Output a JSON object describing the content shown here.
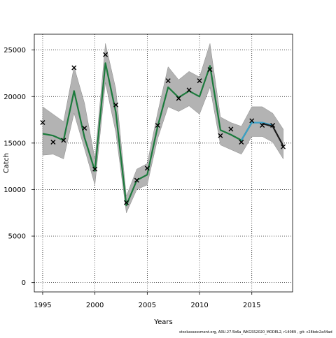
{
  "chart_data": {
    "type": "line",
    "title": "",
    "xlabel": "Years",
    "ylabel": "Catch",
    "xlim": [
      1994.2,
      2018.9
    ],
    "ylim": [
      -1000,
      26700
    ],
    "x_ticks": [
      1995,
      2000,
      2005,
      2010,
      2015
    ],
    "y_ticks": [
      0,
      5000,
      10000,
      15000,
      20000,
      25000
    ],
    "grid": true,
    "legend": "none",
    "x": [
      1995,
      1996,
      1997,
      1998,
      1999,
      2000,
      2001,
      2002,
      2003,
      2004,
      2005,
      2006,
      2007,
      2008,
      2009,
      2010,
      2011,
      2012,
      2013,
      2014,
      2015,
      2016,
      2017,
      2018
    ],
    "series": [
      {
        "kind": "band",
        "color": "#b3b3b3",
        "upper": [
          18900,
          18100,
          17300,
          23200,
          19300,
          13300,
          25700,
          20800,
          9300,
          12200,
          12800,
          18300,
          23200,
          21800,
          22700,
          22100,
          25700,
          17800,
          17200,
          16800,
          18900,
          18900,
          18200,
          16500
        ],
        "lower": [
          13700,
          13800,
          13300,
          18200,
          14400,
          10500,
          21500,
          16100,
          7500,
          10000,
          10500,
          15500,
          18900,
          18400,
          19000,
          18100,
          21000,
          14800,
          14300,
          13800,
          15700,
          15700,
          15100,
          13300
        ]
      },
      {
        "kind": "line",
        "color": "#1b7a3c",
        "values": [
          16000,
          15800,
          15300,
          20600,
          15600,
          12000,
          23600,
          18300,
          8300,
          11000,
          11600,
          16800,
          21000,
          19900,
          20600,
          20000,
          23300,
          16400,
          15900,
          15300,
          17200,
          null,
          null,
          null
        ]
      },
      {
        "kind": "line",
        "color": "#3aa0c8",
        "values": [
          null,
          null,
          null,
          null,
          null,
          null,
          null,
          null,
          null,
          null,
          null,
          null,
          null,
          null,
          null,
          null,
          null,
          null,
          null,
          15300,
          17200,
          17200,
          16900,
          null
        ]
      },
      {
        "kind": "line",
        "color": "#1a1a1a",
        "values": [
          null,
          null,
          null,
          null,
          null,
          null,
          null,
          null,
          null,
          null,
          null,
          null,
          null,
          null,
          null,
          null,
          null,
          null,
          null,
          null,
          null,
          17100,
          16800,
          14700
        ]
      },
      {
        "kind": "points",
        "marker": "x",
        "color": "#000000",
        "values": [
          17200,
          15100,
          15300,
          23100,
          16600,
          12200,
          24500,
          19100,
          8600,
          11000,
          12300,
          16900,
          21700,
          19800,
          20700,
          21700,
          22900,
          15800,
          16500,
          15100,
          17400,
          16900,
          16900,
          14600
        ]
      }
    ],
    "footer": "stockassessment.org,  ARU.27.5b6a_WKGSS2020_MODEL2,  r14089 ,  git:  c28bdc2a44ad"
  }
}
